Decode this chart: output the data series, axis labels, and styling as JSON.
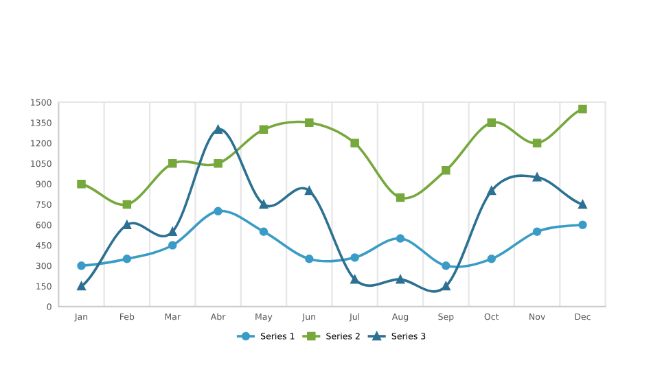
{
  "chart_data": {
    "type": "line",
    "categories": [
      "Jan",
      "Feb",
      "Mar",
      "Abr",
      "May",
      "Jun",
      "Jul",
      "Aug",
      "Sep",
      "Oct",
      "Nov",
      "Dec"
    ],
    "series": [
      {
        "name": "Series 1",
        "color": "#3a9cc6",
        "marker": "circle",
        "values": [
          300,
          350,
          450,
          700,
          550,
          350,
          360,
          500,
          300,
          350,
          550,
          600
        ]
      },
      {
        "name": "Series 2",
        "color": "#76a83c",
        "marker": "square",
        "values": [
          900,
          750,
          1050,
          1050,
          1300,
          1350,
          1200,
          800,
          1000,
          1350,
          1200,
          1450
        ]
      },
      {
        "name": "Series 3",
        "color": "#2c7191",
        "marker": "triangle",
        "values": [
          150,
          600,
          550,
          1300,
          750,
          850,
          200,
          200,
          150,
          850,
          950,
          750
        ]
      }
    ],
    "ylim": [
      0,
      1500
    ],
    "yticks": [
      0,
      150,
      300,
      450,
      600,
      750,
      900,
      1050,
      1200,
      1350,
      1500
    ],
    "grid": "x",
    "legend": "bottom",
    "line_style": "solid"
  }
}
